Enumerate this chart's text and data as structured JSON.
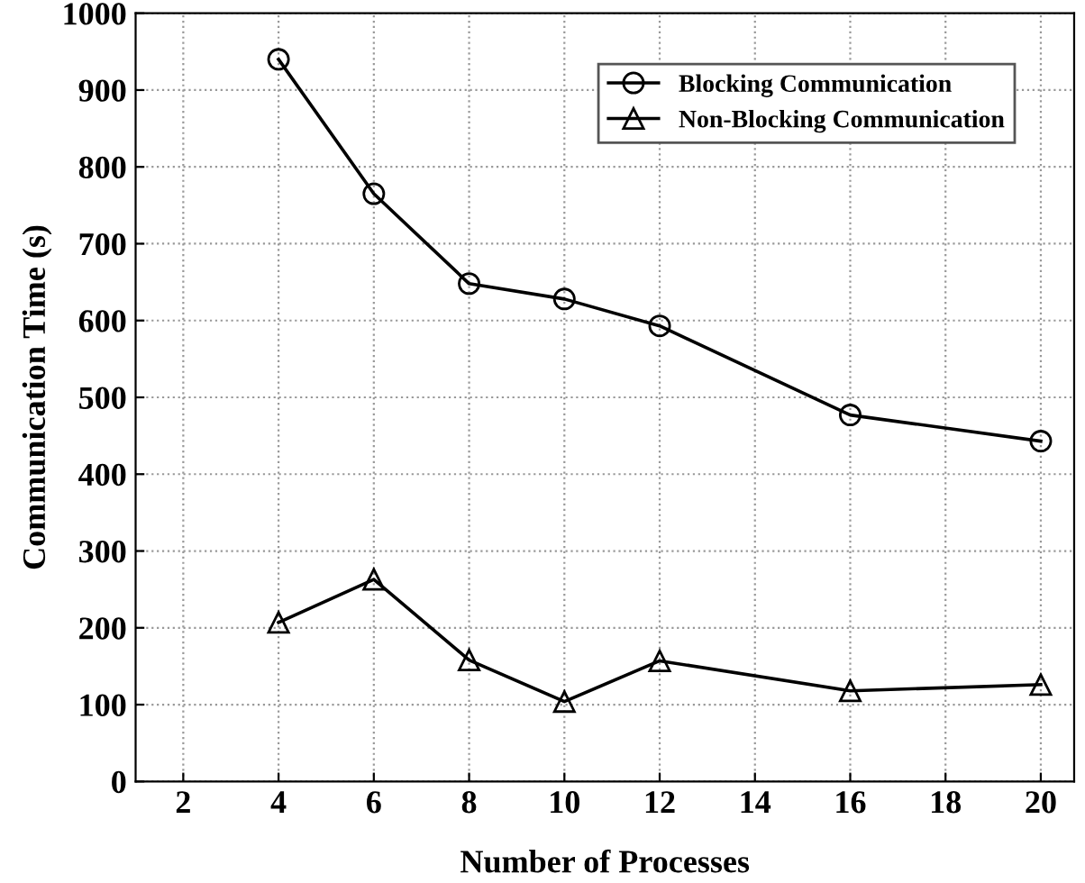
{
  "chart_data": {
    "type": "line",
    "xlabel": "Number of Processes",
    "ylabel": "Communication Time (s)",
    "x": [
      4,
      6,
      8,
      10,
      12,
      16,
      20
    ],
    "series": [
      {
        "name": "Blocking Communication",
        "color": "#000000",
        "marker": "circle",
        "values": [
          940,
          765,
          648,
          628,
          593,
          477,
          443
        ]
      },
      {
        "name": "Non-Blocking Communication",
        "color": "#000000",
        "marker": "triangle",
        "values": [
          207,
          263,
          158,
          104,
          157,
          118,
          126
        ]
      }
    ],
    "xlim": [
      1,
      20.7
    ],
    "xticks": [
      2,
      4,
      6,
      8,
      10,
      12,
      14,
      16,
      18,
      20
    ],
    "ylim": [
      0,
      1000
    ],
    "yticks": [
      0,
      100,
      200,
      300,
      400,
      500,
      600,
      700,
      800,
      900,
      1000
    ],
    "grid": true,
    "legend": "top right",
    "line_style": "solid"
  }
}
